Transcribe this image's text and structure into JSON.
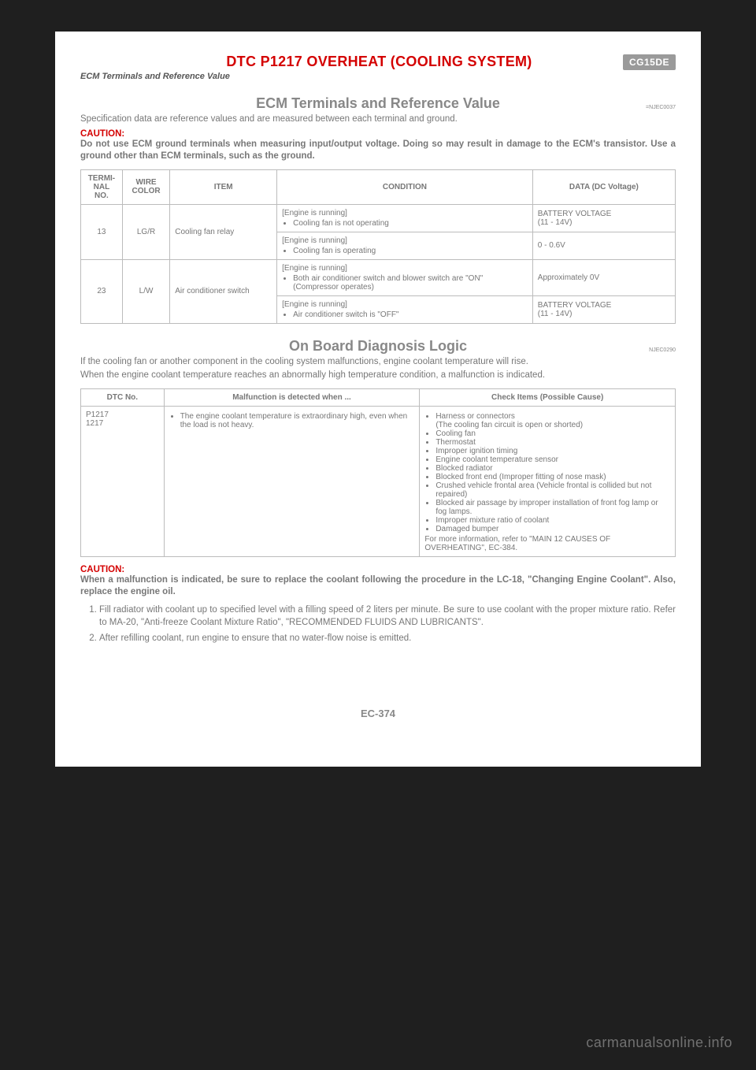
{
  "header": {
    "title": "DTC P1217 OVERHEAT (COOLING SYSTEM)",
    "badge": "CG15DE",
    "subtitle_italic": "ECM Terminals and Reference Value"
  },
  "section1": {
    "heading": "ECM Terminals and Reference Value",
    "ref": "=NJEC0037",
    "intro": "Specification data are reference values and are measured between each terminal and ground.",
    "caution_label": "CAUTION:",
    "caution_text": "Do not use ECM ground terminals when measuring input/output voltage. Doing so may result in damage to the ECM's transistor. Use a ground other than ECM terminals, such as the ground."
  },
  "ecm_table": {
    "columns": [
      "TERMI-\nNAL\nNO.",
      "WIRE\nCOLOR",
      "ITEM",
      "CONDITION",
      "DATA (DC Voltage)"
    ],
    "col_widths": [
      "7%",
      "8%",
      "18%",
      "43%",
      "24%"
    ],
    "rows": [
      {
        "terminal": "13",
        "wire": "LG/R",
        "item": "Cooling fan relay",
        "conditions": [
          {
            "head": "[Engine is running]",
            "bullets": [
              "Cooling fan is not operating"
            ],
            "data": "BATTERY VOLTAGE\n(11 - 14V)"
          },
          {
            "head": "[Engine is running]",
            "bullets": [
              "Cooling fan is operating"
            ],
            "data": "0 - 0.6V"
          }
        ]
      },
      {
        "terminal": "23",
        "wire": "L/W",
        "item": "Air conditioner switch",
        "conditions": [
          {
            "head": "[Engine is running]",
            "bullets": [
              "Both air conditioner switch and blower switch are \"ON\" (Compressor operates)"
            ],
            "data": "Approximately 0V"
          },
          {
            "head": "[Engine is running]",
            "bullets": [
              "Air conditioner switch is \"OFF\""
            ],
            "data": "BATTERY VOLTAGE\n(11 - 14V)"
          }
        ]
      }
    ]
  },
  "section2": {
    "heading": "On Board Diagnosis Logic",
    "ref": "NJEC0290",
    "para1": "If the cooling fan or another component in the cooling system malfunctions, engine coolant temperature will rise.",
    "para2": "When the engine coolant temperature reaches an abnormally high temperature condition, a malfunction is indicated."
  },
  "diag_table": {
    "columns": [
      "DTC No.",
      "Malfunction is detected when ...",
      "Check Items (Possible Cause)"
    ],
    "col_widths": [
      "14%",
      "43%",
      "43%"
    ],
    "dtc": "P1217\n1217",
    "malfunction_bullets": [
      "The engine coolant temperature is extraordinary high, even when the load is not heavy."
    ],
    "cause_bullets": [
      "Harness or connectors\n(The cooling fan circuit is open or shorted)",
      "Cooling fan",
      "Thermostat",
      "Improper ignition timing",
      "Engine coolant temperature sensor",
      "Blocked radiator",
      "Blocked front end (Improper fitting of nose mask)",
      "Crushed vehicle frontal area (Vehicle frontal is collided but not repaired)",
      "Blocked air passage by improper installation of front fog lamp or fog lamps.",
      "Improper mixture ratio of coolant",
      "Damaged bumper"
    ],
    "cause_footer": "For more information, refer to \"MAIN 12 CAUSES OF OVERHEATING\", EC-384."
  },
  "section3": {
    "caution_label": "CAUTION:",
    "caution_text": "When a malfunction is indicated, be sure to replace the coolant following the procedure in the LC-18, \"Changing Engine Coolant\". Also, replace the engine oil.",
    "steps": [
      "Fill radiator with coolant up to specified level with a filling speed of 2 liters per minute. Be sure to use coolant with the proper mixture ratio. Refer to MA-20, \"Anti-freeze Coolant Mixture Ratio\", \"RECOMMENDED FLUIDS AND LUBRICANTS\".",
      "After refilling coolant, run engine to ensure that no water-flow noise is emitted."
    ]
  },
  "footer": {
    "page_number": "EC-374",
    "watermark": "carmanualsonline.info"
  }
}
